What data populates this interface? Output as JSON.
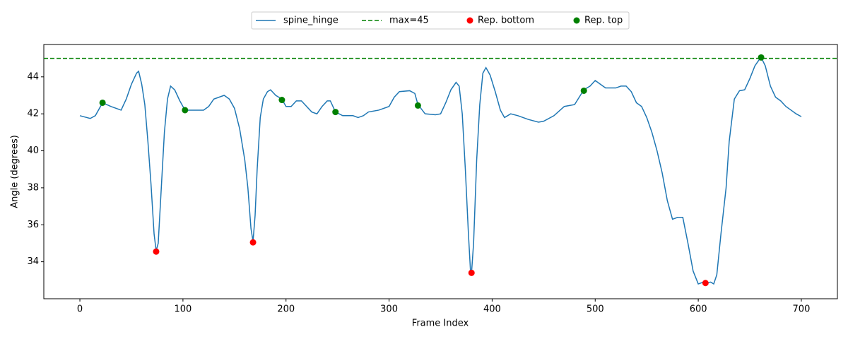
{
  "chart_data": {
    "type": "line",
    "xlabel": "Frame Index",
    "ylabel": "Angle (degrees)",
    "xlim": [
      -35,
      735
    ],
    "ylim": [
      32.0,
      45.75
    ],
    "xticks": [
      0,
      100,
      200,
      300,
      400,
      500,
      600,
      700
    ],
    "yticks": [
      34,
      36,
      38,
      40,
      42,
      44
    ],
    "legend": "top-outside",
    "series": [
      {
        "name": "spine_hinge",
        "type": "line",
        "color": "#1f77b4",
        "x": [
          0,
          10,
          15,
          22,
          30,
          35,
          40,
          45,
          50,
          55,
          57,
          60,
          63,
          66,
          69,
          72,
          74,
          76,
          79,
          82,
          85,
          88,
          92,
          97,
          102,
          110,
          120,
          125,
          130,
          135,
          140,
          145,
          150,
          155,
          160,
          163,
          166,
          168,
          170,
          172,
          175,
          178,
          182,
          185,
          190,
          196,
          200,
          205,
          210,
          215,
          220,
          225,
          230,
          235,
          240,
          243,
          248,
          255,
          265,
          270,
          275,
          280,
          290,
          300,
          305,
          310,
          320,
          325,
          328,
          335,
          345,
          350,
          355,
          360,
          365,
          368,
          371,
          374,
          377,
          379,
          380,
          382,
          385,
          388,
          391,
          394,
          398,
          403,
          408,
          412,
          418,
          425,
          435,
          445,
          450,
          460,
          470,
          480,
          489,
          495,
          500,
          505,
          510,
          520,
          525,
          530,
          535,
          540,
          545,
          550,
          555,
          560,
          565,
          570,
          575,
          580,
          585,
          590,
          595,
          600,
          605,
          608,
          612,
          615,
          618,
          622,
          627,
          630,
          635,
          640,
          645,
          650,
          655,
          660,
          661,
          665,
          670,
          675,
          680,
          685,
          690,
          695,
          700
        ],
        "values": [
          41.9,
          41.75,
          41.9,
          42.6,
          42.4,
          42.3,
          42.2,
          42.8,
          43.6,
          44.2,
          44.3,
          43.6,
          42.5,
          40.5,
          38.2,
          35.5,
          34.6,
          35.0,
          38.0,
          41.0,
          42.8,
          43.5,
          43.3,
          42.7,
          42.2,
          42.2,
          42.2,
          42.4,
          42.8,
          42.9,
          43.0,
          42.8,
          42.3,
          41.2,
          39.5,
          38.0,
          35.8,
          35.1,
          36.5,
          39.0,
          41.8,
          42.8,
          43.2,
          43.3,
          43.0,
          42.8,
          42.4,
          42.4,
          42.7,
          42.7,
          42.4,
          42.1,
          42.0,
          42.4,
          42.7,
          42.7,
          42.1,
          41.9,
          41.9,
          41.8,
          41.9,
          42.1,
          42.2,
          42.4,
          42.9,
          43.2,
          43.25,
          43.1,
          42.5,
          42.0,
          41.95,
          42.0,
          42.6,
          43.3,
          43.7,
          43.5,
          42.0,
          39.0,
          35.5,
          33.5,
          33.4,
          35.0,
          39.5,
          42.5,
          44.2,
          44.5,
          44.1,
          43.2,
          42.2,
          41.8,
          42.0,
          41.9,
          41.7,
          41.55,
          41.6,
          41.9,
          42.4,
          42.5,
          43.3,
          43.5,
          43.8,
          43.6,
          43.4,
          43.4,
          43.5,
          43.5,
          43.2,
          42.6,
          42.4,
          41.8,
          41.0,
          40.0,
          38.8,
          37.3,
          36.3,
          36.4,
          36.4,
          35.0,
          33.5,
          32.8,
          32.9,
          32.85,
          32.9,
          32.8,
          33.3,
          35.5,
          38.0,
          40.5,
          42.8,
          43.25,
          43.3,
          43.9,
          44.6,
          45.0,
          45.05,
          44.6,
          43.5,
          42.9,
          42.7,
          42.4,
          42.2,
          42.0,
          41.85
        ]
      },
      {
        "name": "max=45",
        "type": "hline",
        "color": "#008000",
        "dashed": true,
        "value": 45
      },
      {
        "name": "Rep. bottom",
        "type": "scatter",
        "color": "#ff0000",
        "x": [
          74,
          168,
          380,
          607
        ],
        "values": [
          34.55,
          35.05,
          33.4,
          32.85
        ]
      },
      {
        "name": "Rep. top",
        "type": "scatter",
        "color": "#008000",
        "x": [
          22,
          102,
          196,
          248,
          328,
          489,
          661
        ],
        "values": [
          42.6,
          42.2,
          42.75,
          42.1,
          42.45,
          43.25,
          45.05
        ]
      }
    ]
  }
}
